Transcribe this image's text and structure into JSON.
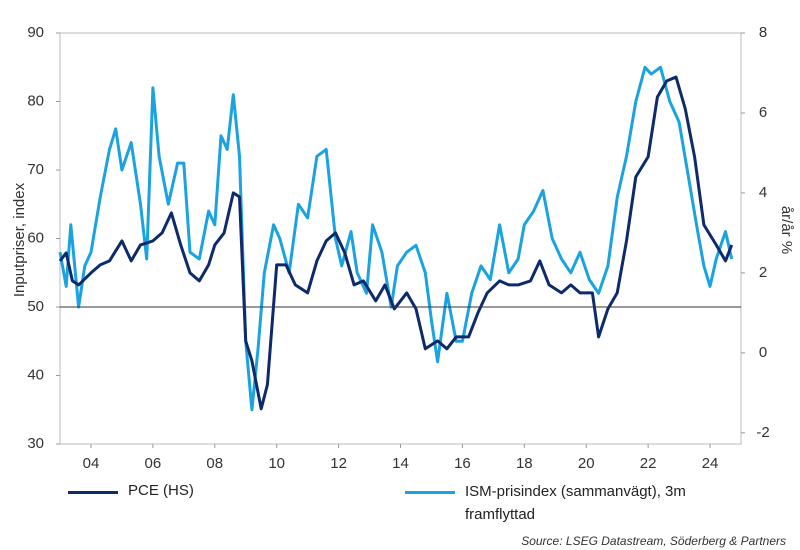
{
  "chart_data": {
    "type": "line",
    "ylabel": "Inputpriser, index",
    "y2label": "år/år %",
    "source": "Source: LSEG Datastream, Söderberg & Partners",
    "xlim": [
      2003,
      2025
    ],
    "xticks": [
      {
        "value": 2004,
        "label": "04"
      },
      {
        "value": 2006,
        "label": "06"
      },
      {
        "value": 2008,
        "label": "08"
      },
      {
        "value": 2010,
        "label": "10"
      },
      {
        "value": 2012,
        "label": "12"
      },
      {
        "value": 2014,
        "label": "14"
      },
      {
        "value": 2016,
        "label": "16"
      },
      {
        "value": 2018,
        "label": "18"
      },
      {
        "value": 2020,
        "label": "20"
      },
      {
        "value": 2022,
        "label": "22"
      },
      {
        "value": 2024,
        "label": "24"
      }
    ],
    "ylim": [
      30,
      90
    ],
    "yticks": [
      30,
      40,
      50,
      60,
      70,
      80,
      90
    ],
    "y2lim": [
      -2.28,
      8
    ],
    "y2ticks": [
      -2,
      0,
      2,
      4,
      6,
      8
    ],
    "reference_line": 50,
    "series": [
      {
        "name": "PCE (HS)",
        "color": "#0d2a6b",
        "axis": "y2",
        "x": [
          2003.0,
          2003.2,
          2003.4,
          2003.6,
          2004.0,
          2004.3,
          2004.6,
          2005.0,
          2005.3,
          2005.6,
          2006.0,
          2006.3,
          2006.6,
          2006.9,
          2007.2,
          2007.5,
          2007.8,
          2008.0,
          2008.3,
          2008.6,
          2008.8,
          2009.0,
          2009.2,
          2009.5,
          2009.7,
          2010.0,
          2010.3,
          2010.6,
          2011.0,
          2011.3,
          2011.6,
          2011.9,
          2012.2,
          2012.5,
          2012.8,
          2013.2,
          2013.5,
          2013.8,
          2014.2,
          2014.5,
          2014.8,
          2015.2,
          2015.5,
          2015.8,
          2016.2,
          2016.5,
          2016.8,
          2017.2,
          2017.5,
          2017.8,
          2018.2,
          2018.5,
          2018.8,
          2019.2,
          2019.5,
          2019.8,
          2020.2,
          2020.4,
          2020.7,
          2021.0,
          2021.3,
          2021.6,
          2022.0,
          2022.3,
          2022.6,
          2022.9,
          2023.2,
          2023.5,
          2023.8,
          2024.2,
          2024.5,
          2024.7
        ],
        "values": [
          2.3,
          2.5,
          1.8,
          1.7,
          2.0,
          2.2,
          2.3,
          2.8,
          2.3,
          2.7,
          2.8,
          3.0,
          3.5,
          2.7,
          2.0,
          1.8,
          2.2,
          2.7,
          3.0,
          4.0,
          3.9,
          0.3,
          -0.2,
          -1.4,
          -0.8,
          2.2,
          2.2,
          1.7,
          1.5,
          2.3,
          2.8,
          3.0,
          2.5,
          1.7,
          1.8,
          1.3,
          1.7,
          1.1,
          1.5,
          1.1,
          0.1,
          0.3,
          0.1,
          0.4,
          0.4,
          1.0,
          1.5,
          1.8,
          1.7,
          1.7,
          1.8,
          2.3,
          1.7,
          1.5,
          1.7,
          1.5,
          1.5,
          0.4,
          1.1,
          1.5,
          2.8,
          4.4,
          4.9,
          6.4,
          6.8,
          6.9,
          6.1,
          4.9,
          3.2,
          2.7,
          2.3,
          2.7
        ]
      },
      {
        "name": "ISM-prisindex (sammanvägt), 3m framflyttad",
        "color": "#1aa3e0",
        "x": [
          2003.0,
          2003.2,
          2003.35,
          2003.6,
          2003.8,
          2004.0,
          2004.3,
          2004.6,
          2004.8,
          2005.0,
          2005.3,
          2005.6,
          2005.8,
          2006.0,
          2006.2,
          2006.5,
          2006.8,
          2007.0,
          2007.2,
          2007.5,
          2007.8,
          2008.0,
          2008.2,
          2008.4,
          2008.6,
          2008.8,
          2009.0,
          2009.2,
          2009.4,
          2009.6,
          2009.9,
          2010.1,
          2010.4,
          2010.7,
          2011.0,
          2011.3,
          2011.6,
          2011.9,
          2012.1,
          2012.4,
          2012.6,
          2012.9,
          2013.1,
          2013.4,
          2013.7,
          2013.9,
          2014.2,
          2014.5,
          2014.8,
          2015.0,
          2015.2,
          2015.5,
          2015.8,
          2016.0,
          2016.3,
          2016.6,
          2016.9,
          2017.2,
          2017.5,
          2017.8,
          2018.0,
          2018.3,
          2018.6,
          2018.9,
          2019.2,
          2019.5,
          2019.8,
          2020.1,
          2020.4,
          2020.7,
          2021.0,
          2021.3,
          2021.6,
          2021.9,
          2022.1,
          2022.4,
          2022.7,
          2023.0,
          2023.3,
          2023.6,
          2023.8,
          2024.0,
          2024.2,
          2024.5,
          2024.7
        ],
        "values": [
          58,
          53,
          62,
          50,
          56,
          58,
          66,
          73,
          76,
          70,
          74,
          65,
          57,
          82,
          72,
          65,
          71,
          71,
          58,
          57,
          64,
          62,
          75,
          73,
          81,
          72,
          45,
          35,
          44,
          55,
          62,
          60,
          55,
          65,
          63,
          72,
          73,
          60,
          56,
          61,
          55,
          52,
          62,
          58,
          50,
          56,
          58,
          59,
          55,
          48,
          42,
          52,
          45,
          45,
          52,
          56,
          54,
          62,
          55,
          57,
          62,
          64,
          67,
          60,
          57,
          55,
          58,
          54,
          52,
          56,
          66,
          72,
          80,
          85,
          84,
          85,
          80,
          77,
          69,
          61,
          56,
          53,
          57,
          61,
          57
        ]
      }
    ]
  }
}
